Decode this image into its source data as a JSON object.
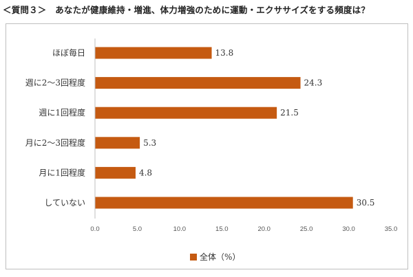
{
  "page": {
    "title": "＜質問３＞　あなたが健康維持・増進、体力増強のために運動・エクササイズをする頻度は？"
  },
  "colors": {
    "bar": "#C55A11",
    "axis": "#bfbfbf",
    "frame": "#bfbfbf"
  },
  "chart_data": {
    "type": "bar",
    "orientation": "horizontal",
    "categories": [
      "ほぼ毎日",
      "週に2～3回程度",
      "週に1回程度",
      "月に2～3回程度",
      "月に1回程度",
      "していない"
    ],
    "series": [
      {
        "name": "全体（%）",
        "values": [
          13.8,
          24.3,
          21.5,
          5.3,
          4.8,
          30.5
        ]
      }
    ],
    "value_labels": [
      "13.8",
      "24.3",
      "21.5",
      "5.3",
      "4.8",
      "30.5"
    ],
    "xlim": [
      0,
      35
    ],
    "xticks": [
      "0.0",
      "5.0",
      "10.0",
      "15.0",
      "20.0",
      "25.0",
      "30.0",
      "35.0"
    ],
    "grid": false,
    "legend": {
      "placement": "bottom-center",
      "label": "全体（%）"
    }
  }
}
